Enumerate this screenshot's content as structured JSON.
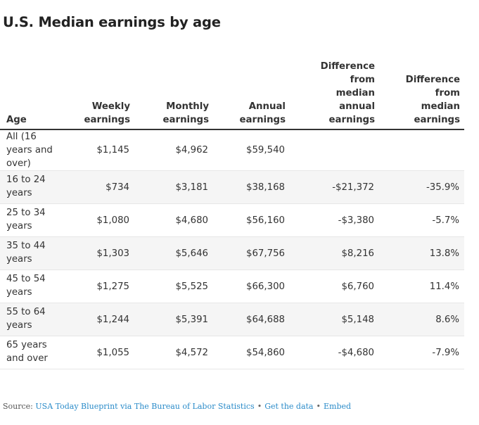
{
  "title": "U.S. Median earnings by age",
  "chart_data": {
    "type": "table",
    "columns": [
      [
        "Age"
      ],
      [
        "Weekly",
        "earnings"
      ],
      [
        "Monthly",
        "earnings"
      ],
      [
        "Annual",
        "earnings"
      ],
      [
        "Difference",
        "from",
        "median",
        "annual",
        "earnings"
      ],
      [
        "Difference",
        "from",
        "median",
        "earnings"
      ]
    ],
    "rows": [
      {
        "age": "All (16\nyears and\nover)",
        "weekly": "$1,145",
        "monthly": "$4,962",
        "annual": "$59,540",
        "diff": "",
        "pct": ""
      },
      {
        "age": "16 to 24\nyears",
        "weekly": "$734",
        "monthly": "$3,181",
        "annual": "$38,168",
        "diff": "-$21,372",
        "pct": "-35.9%"
      },
      {
        "age": "25 to 34\nyears",
        "weekly": "$1,080",
        "monthly": "$4,680",
        "annual": "$56,160",
        "diff": "-$3,380",
        "pct": "-5.7%"
      },
      {
        "age": "35 to 44\nyears",
        "weekly": "$1,303",
        "monthly": "$5,646",
        "annual": "$67,756",
        "diff": "$8,216",
        "pct": "13.8%"
      },
      {
        "age": "45 to 54\nyears",
        "weekly": "$1,275",
        "monthly": "$5,525",
        "annual": "$66,300",
        "diff": "$6,760",
        "pct": "11.4%"
      },
      {
        "age": "55 to 64\nyears",
        "weekly": "$1,244",
        "monthly": "$5,391",
        "annual": "$64,688",
        "diff": "$5,148",
        "pct": "8.6%"
      },
      {
        "age": "65 years\nand over",
        "weekly": "$1,055",
        "monthly": "$4,572",
        "annual": "$54,860",
        "diff": "-$4,680",
        "pct": "-7.9%"
      }
    ]
  },
  "footer": {
    "source_label": "Source:",
    "source_link": "USA Today Blueprint via The Bureau of Labor Statistics",
    "separator": "•",
    "get_data": "Get the data",
    "embed": "Embed"
  }
}
